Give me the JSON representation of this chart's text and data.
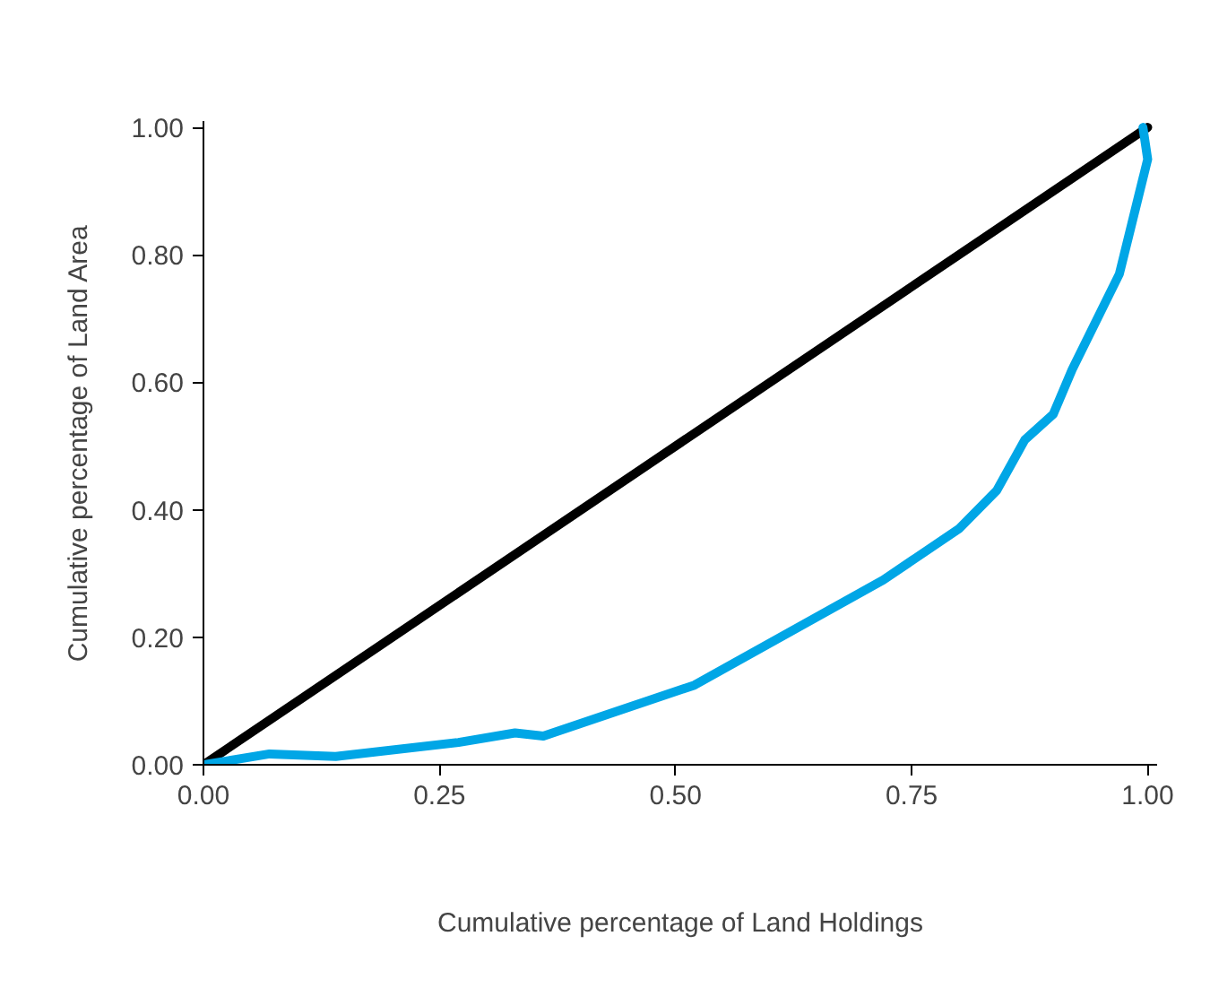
{
  "chart_data": {
    "type": "line",
    "xlabel": "Cumulative percentage of Land Holdings",
    "ylabel": "Cumulative percentage of Land Area",
    "xlim": [
      0,
      1.01
    ],
    "ylim": [
      0,
      1.01
    ],
    "xticks": [
      {
        "value": 0,
        "label": "0.00"
      },
      {
        "value": 0.25,
        "label": "0.25"
      },
      {
        "value": 0.5,
        "label": "0.50"
      },
      {
        "value": 0.75,
        "label": "0.75"
      },
      {
        "value": 1,
        "label": "1.00"
      }
    ],
    "yticks": [
      {
        "value": 0,
        "label": "0.00"
      },
      {
        "value": 0.2,
        "label": "0.20"
      },
      {
        "value": 0.4,
        "label": "0.40"
      },
      {
        "value": 0.6,
        "label": "0.60"
      },
      {
        "value": 0.8,
        "label": "0.80"
      },
      {
        "value": 1,
        "label": "1.00"
      }
    ],
    "grid": false,
    "marker": "none",
    "line_style": "solid",
    "series": [
      {
        "color": "#000000",
        "x": [
          0,
          1
        ],
        "values": [
          0,
          1
        ]
      },
      {
        "color": "#00a6e6",
        "x": [
          0,
          0.07,
          0.14,
          0.27,
          0.33,
          0.36,
          0.52,
          0.72,
          0.8,
          0.84,
          0.87,
          0.9,
          0.92,
          0.97,
          0.99,
          1.0,
          0.995
        ],
        "values": [
          0,
          0.017,
          0.013,
          0.035,
          0.05,
          0.045,
          0.125,
          0.29,
          0.37,
          0.43,
          0.51,
          0.55,
          0.62,
          0.77,
          0.89,
          0.95,
          1.0
        ]
      }
    ]
  }
}
